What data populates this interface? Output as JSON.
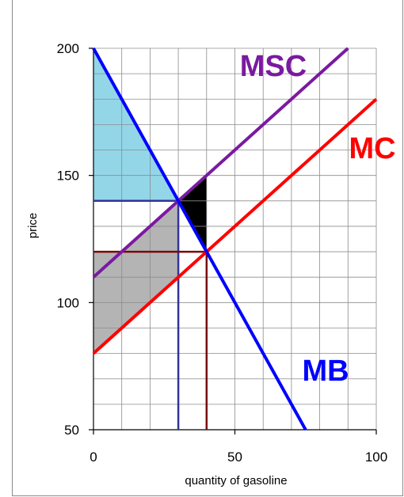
{
  "chart_data": {
    "type": "line",
    "title": "",
    "xlabel": "quantity of gasoline",
    "ylabel": "price",
    "xlim": [
      0,
      100
    ],
    "ylim": [
      50,
      200
    ],
    "grid": true,
    "x_ticks": [
      0,
      50,
      100
    ],
    "y_ticks": [
      50,
      100,
      150,
      200
    ],
    "series": [
      {
        "name": "MB",
        "color": "#0000ff",
        "x": [
          0,
          75
        ],
        "y": [
          200,
          50
        ]
      },
      {
        "name": "MSC",
        "color": "#7a1aa0",
        "x": [
          0,
          90
        ],
        "y": [
          110,
          200
        ]
      },
      {
        "name": "MC",
        "color": "#ff0000",
        "x": [
          0,
          100
        ],
        "y": [
          80,
          180
        ]
      }
    ],
    "guide_lines": [
      {
        "color": "#333399",
        "points": [
          [
            0,
            140
          ],
          [
            30,
            140
          ],
          [
            30,
            50
          ]
        ]
      },
      {
        "color": "#7a0a0a",
        "points": [
          [
            0,
            120
          ],
          [
            40,
            120
          ],
          [
            40,
            50
          ]
        ]
      }
    ],
    "shaded_regions": [
      {
        "color": "#93d6e8",
        "points": [
          [
            0,
            200
          ],
          [
            30,
            140
          ],
          [
            0,
            140
          ]
        ]
      },
      {
        "color": "#ffb7c5",
        "points": [
          [
            0,
            110
          ],
          [
            10,
            120
          ],
          [
            0,
            120
          ]
        ]
      },
      {
        "color": "#b4b4b4",
        "points": [
          [
            0,
            80
          ],
          [
            30,
            110
          ],
          [
            30,
            140
          ],
          [
            10,
            120
          ],
          [
            0,
            120
          ]
        ]
      },
      {
        "color": "#000000",
        "points": [
          [
            30,
            140
          ],
          [
            40,
            150
          ],
          [
            40,
            120
          ]
        ]
      }
    ]
  }
}
